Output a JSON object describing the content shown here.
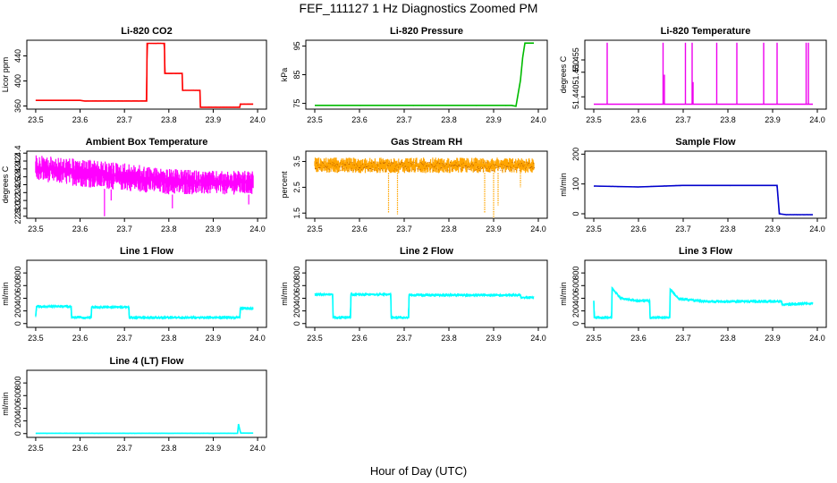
{
  "page_title": "FEF_111127  1 Hz Diagnostics Zoomed PM",
  "x_axis_label": "Hour of Day (UTC)",
  "chart_data": [
    {
      "type": "line",
      "title": "Li-820 CO2",
      "ylabel": "Licor ppm",
      "color": "#ff0000",
      "xlim": [
        23.5,
        24.0
      ],
      "ylim": [
        355,
        465
      ],
      "yticks": [
        "360",
        "400",
        "440"
      ],
      "ytick_values": [
        360,
        400,
        440
      ],
      "xticks": [
        "23.5",
        "23.6",
        "23.7",
        "23.8",
        "23.9",
        "24.0"
      ],
      "x": [
        23.5,
        23.6,
        23.61,
        23.75,
        23.751,
        23.79,
        23.791,
        23.83,
        23.831,
        23.87,
        23.871,
        23.96,
        23.961,
        23.99
      ],
      "y": [
        369,
        369,
        368,
        368,
        460,
        460,
        412,
        412,
        385,
        385,
        358,
        358,
        363,
        363
      ]
    },
    {
      "type": "line",
      "title": "Li-820 Pressure",
      "ylabel": "kPa",
      "color": "#00bb00",
      "xlim": [
        23.5,
        24.0
      ],
      "ylim": [
        73,
        97
      ],
      "yticks": [
        "75",
        "85",
        "95"
      ],
      "ytick_values": [
        75,
        85,
        95
      ],
      "xticks": [
        "23.5",
        "23.6",
        "23.7",
        "23.8",
        "23.9",
        "24.0"
      ],
      "x": [
        23.5,
        23.94,
        23.95,
        23.96,
        23.965,
        23.97,
        23.99
      ],
      "y": [
        74.3,
        74.3,
        74,
        83,
        91,
        96,
        96
      ]
    },
    {
      "type": "line",
      "title": "Li-820 Temperature",
      "ylabel": "degrees C",
      "color": "#ee00ee",
      "xlim": [
        23.5,
        24.0
      ],
      "ylim": [
        51.435,
        51.463
      ],
      "yticks": [
        "51.440",
        "51.450",
        "51.455"
      ],
      "ytick_values": [
        51.44,
        51.45,
        51.455
      ],
      "xticks": [
        "23.5",
        "23.6",
        "23.7",
        "23.8",
        "23.9",
        "24.0"
      ],
      "baseline": 51.437,
      "spikes": [
        {
          "x": 23.53,
          "y": 51.462
        },
        {
          "x": 23.655,
          "y": 51.462
        },
        {
          "x": 23.658,
          "y": 51.449
        },
        {
          "x": 23.705,
          "y": 51.462
        },
        {
          "x": 23.72,
          "y": 51.462
        },
        {
          "x": 23.722,
          "y": 51.446
        },
        {
          "x": 23.775,
          "y": 51.462
        },
        {
          "x": 23.82,
          "y": 51.462
        },
        {
          "x": 23.88,
          "y": 51.462
        },
        {
          "x": 23.91,
          "y": 51.462
        },
        {
          "x": 23.975,
          "y": 51.462
        },
        {
          "x": 23.98,
          "y": 51.462
        }
      ]
    },
    {
      "type": "line",
      "title": "Ambient Box Temperature",
      "ylabel": "degrees C",
      "color": "#ff00ff",
      "xlim": [
        23.5,
        24.0
      ],
      "ylim": [
        22.75,
        24.45
      ],
      "yticks": [
        "22.8",
        "23.0",
        "23.2",
        "23.4",
        "23.6",
        "23.8",
        "24.0",
        "24.2",
        "24.4"
      ],
      "ytick_values": [
        22.8,
        23.0,
        23.2,
        23.4,
        23.6,
        23.8,
        24.0,
        24.2,
        24.4
      ],
      "xticks": [
        "23.5",
        "23.6",
        "23.7",
        "23.8",
        "23.9",
        "24.0"
      ],
      "band_x": [
        23.5,
        23.6,
        23.7,
        23.8,
        23.9,
        23.99
      ],
      "band_low": [
        23.7,
        23.55,
        23.45,
        23.35,
        23.35,
        23.35
      ],
      "band_high": [
        24.35,
        24.25,
        24.15,
        24.0,
        23.95,
        23.95
      ],
      "dips": [
        {
          "x": 23.655,
          "y": 22.8
        },
        {
          "x": 23.808,
          "y": 23.0
        },
        {
          "x": 23.67,
          "y": 23.2
        },
        {
          "x": 23.98,
          "y": 23.1
        }
      ]
    },
    {
      "type": "line",
      "title": "Gas Stream RH",
      "ylabel": "percent",
      "color": "#ffa500",
      "xlim": [
        23.5,
        24.0
      ],
      "ylim": [
        1.3,
        3.9
      ],
      "yticks": [
        "1.5",
        "2.5",
        "3.5"
      ],
      "ytick_values": [
        1.5,
        2.5,
        3.5
      ],
      "xticks": [
        "23.5",
        "23.6",
        "23.7",
        "23.8",
        "23.9",
        "24.0"
      ],
      "band_x": [
        23.5,
        23.99
      ],
      "band_low": [
        3.05,
        3.05
      ],
      "band_high": [
        3.65,
        3.65
      ],
      "dips": [
        {
          "x": 23.665,
          "y": 1.5
        },
        {
          "x": 23.685,
          "y": 1.45
        },
        {
          "x": 23.88,
          "y": 1.5
        },
        {
          "x": 23.9,
          "y": 1.3
        },
        {
          "x": 23.91,
          "y": 1.8
        },
        {
          "x": 23.96,
          "y": 2.5
        }
      ]
    },
    {
      "type": "line",
      "title": "Sample Flow",
      "ylabel": "ml/min",
      "color": "#0000cc",
      "xlim": [
        23.5,
        24.0
      ],
      "ylim": [
        -15,
        210
      ],
      "yticks": [
        "0",
        "100",
        "200"
      ],
      "ytick_values": [
        0,
        100,
        200
      ],
      "xticks": [
        "23.5",
        "23.6",
        "23.7",
        "23.8",
        "23.9",
        "24.0"
      ],
      "x": [
        23.5,
        23.6,
        23.7,
        23.8,
        23.91,
        23.915,
        23.93,
        23.99
      ],
      "y": [
        93,
        90,
        95,
        95,
        95,
        0,
        -3,
        -3
      ]
    },
    {
      "type": "line",
      "title": "Line 1 Flow",
      "ylabel": "ml/min",
      "color": "#00ffff",
      "xlim": [
        23.5,
        24.0
      ],
      "ylim": [
        -60,
        1000
      ],
      "yticks": [
        "0",
        "200",
        "400",
        "600",
        "800"
      ],
      "ytick_values": [
        0,
        200,
        400,
        600,
        800
      ],
      "xticks": [
        "23.5",
        "23.6",
        "23.7",
        "23.8",
        "23.9",
        "24.0"
      ],
      "x": [
        23.5,
        23.502,
        23.58,
        23.581,
        23.625,
        23.626,
        23.71,
        23.711,
        23.96,
        23.961,
        23.99
      ],
      "y": [
        120,
        270,
        270,
        95,
        95,
        260,
        260,
        95,
        95,
        240,
        240
      ]
    },
    {
      "type": "line",
      "title": "Line 2 Flow",
      "ylabel": "ml/min",
      "color": "#00ffff",
      "xlim": [
        23.5,
        24.0
      ],
      "ylim": [
        -60,
        1000
      ],
      "yticks": [
        "0",
        "200",
        "400",
        "600",
        "800"
      ],
      "ytick_values": [
        0,
        200,
        400,
        600,
        800
      ],
      "xticks": [
        "23.5",
        "23.6",
        "23.7",
        "23.8",
        "23.9",
        "24.0"
      ],
      "x": [
        23.5,
        23.54,
        23.541,
        23.58,
        23.581,
        23.67,
        23.671,
        23.71,
        23.711,
        23.96,
        23.961,
        23.99
      ],
      "y": [
        460,
        460,
        95,
        95,
        460,
        460,
        95,
        95,
        450,
        450,
        410,
        410
      ]
    },
    {
      "type": "line",
      "title": "Line 3 Flow",
      "ylabel": "ml/min",
      "color": "#00ffff",
      "xlim": [
        23.5,
        24.0
      ],
      "ylim": [
        -60,
        1000
      ],
      "yticks": [
        "0",
        "200",
        "400",
        "600",
        "800"
      ],
      "ytick_values": [
        0,
        200,
        400,
        600,
        800
      ],
      "xticks": [
        "23.5",
        "23.6",
        "23.7",
        "23.8",
        "23.9",
        "24.0"
      ],
      "x": [
        23.5,
        23.501,
        23.54,
        23.541,
        23.56,
        23.6,
        23.625,
        23.626,
        23.67,
        23.671,
        23.69,
        23.75,
        23.9,
        23.92,
        23.921,
        23.99
      ],
      "y": [
        360,
        95,
        95,
        560,
        400,
        360,
        360,
        95,
        95,
        540,
        390,
        350,
        350,
        350,
        300,
        320
      ]
    },
    {
      "type": "line",
      "title": "Line 4 (LT) Flow",
      "ylabel": "ml/min",
      "color": "#00ffff",
      "xlim": [
        23.5,
        24.0
      ],
      "ylim": [
        -60,
        1000
      ],
      "yticks": [
        "0",
        "200",
        "400",
        "600",
        "800"
      ],
      "ytick_values": [
        0,
        200,
        400,
        600,
        800
      ],
      "xticks": [
        "23.5",
        "23.6",
        "23.7",
        "23.8",
        "23.9",
        "24.0"
      ],
      "x": [
        23.5,
        23.955,
        23.957,
        23.96,
        23.962,
        23.99
      ],
      "y": [
        5,
        5,
        150,
        60,
        8,
        8
      ]
    }
  ]
}
